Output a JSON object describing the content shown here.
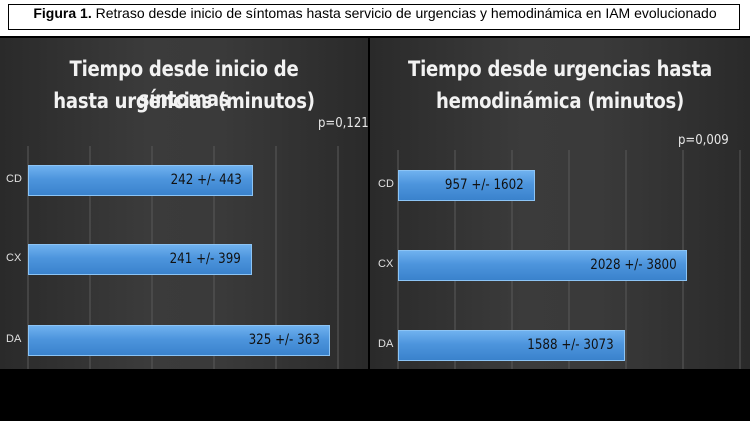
{
  "caption": {
    "label": "Figura 1.",
    "text": "Retraso desde inicio de síntomas hasta servicio de urgencias y hemodinámica en IAM evolucionado"
  },
  "chart_data": [
    {
      "type": "bar",
      "orientation": "horizontal",
      "title_line1": "Tiempo desde inicio de síntomas",
      "title_line2": "hasta urgencias (minutos)",
      "annotation": "p=0,121",
      "categories": [
        "CD",
        "CX",
        "DA"
      ],
      "values": [
        242,
        241,
        325
      ],
      "data_labels": [
        "242 +/- 443",
        "241 +/- 399",
        "325 +/- 363"
      ],
      "xlim": [
        0,
        330
      ],
      "grid": true
    },
    {
      "type": "bar",
      "orientation": "horizontal",
      "title_line1": "Tiempo desde urgencias hasta",
      "title_line2": "hemodinámica (minutos)",
      "annotation": "p=0,009",
      "categories": [
        "CD",
        "CX",
        "DA"
      ],
      "values": [
        957,
        2028,
        1588
      ],
      "data_labels": [
        "957 +/- 1602",
        "2028 +/- 3800",
        "1588 +/- 3073"
      ],
      "xlim": [
        0,
        2200
      ],
      "grid": true
    }
  ],
  "colors": {
    "bar": "#4d95dd",
    "background": "#363636",
    "text": "#f2f2f2"
  }
}
